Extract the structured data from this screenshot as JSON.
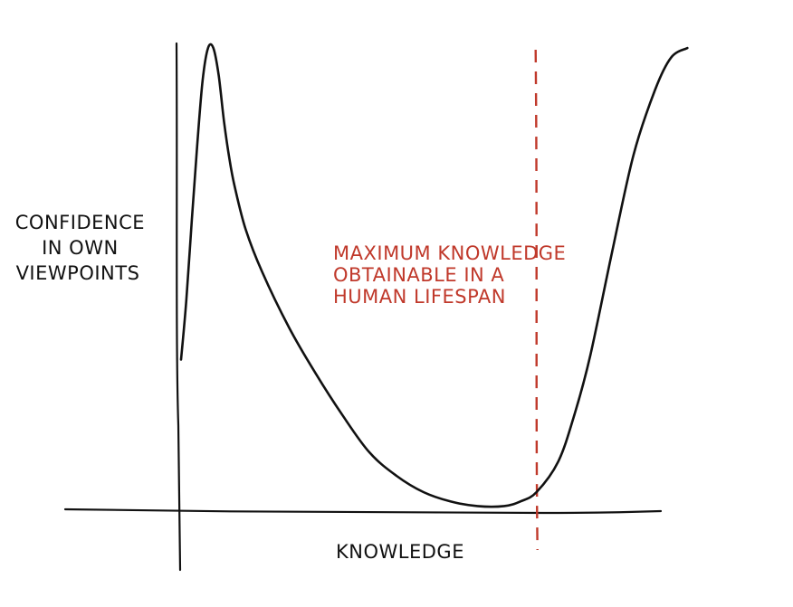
{
  "chart_data": {
    "type": "line",
    "title": "",
    "xlabel": "KNOWLEDGE",
    "ylabel_lines": [
      "CONFIDENCE",
      "IN OWN",
      "VIEWPOINTS"
    ],
    "xlim": [
      0,
      100
    ],
    "ylim": [
      0,
      100
    ],
    "grid": false,
    "legend": "none",
    "series": [
      {
        "color": "#111111",
        "x": [
          0,
          1,
          2,
          3,
          4,
          5,
          6,
          7,
          8,
          9,
          10,
          12,
          15,
          20,
          25,
          30,
          35,
          40,
          45,
          50,
          55,
          60,
          63,
          66,
          70,
          73,
          76,
          80,
          84,
          88,
          91,
          94
        ],
        "y": [
          32,
          45,
          62,
          78,
          92,
          99,
          99,
          93,
          83,
          75,
          69,
          60,
          51,
          39,
          29,
          20,
          12,
          7,
          3.5,
          1.5,
          0.5,
          0.5,
          1.5,
          3.5,
          10,
          20,
          33,
          55,
          76,
          90,
          97,
          99
        ]
      }
    ],
    "vline": {
      "x": 66,
      "color": "#c0392b",
      "style": "dashed"
    },
    "annotation": {
      "lines": [
        "MAXIMUM KNOWLEDGE",
        "OBTAINABLE IN A",
        "HUMAN LIFESPAN"
      ],
      "color": "#c0392b"
    }
  }
}
